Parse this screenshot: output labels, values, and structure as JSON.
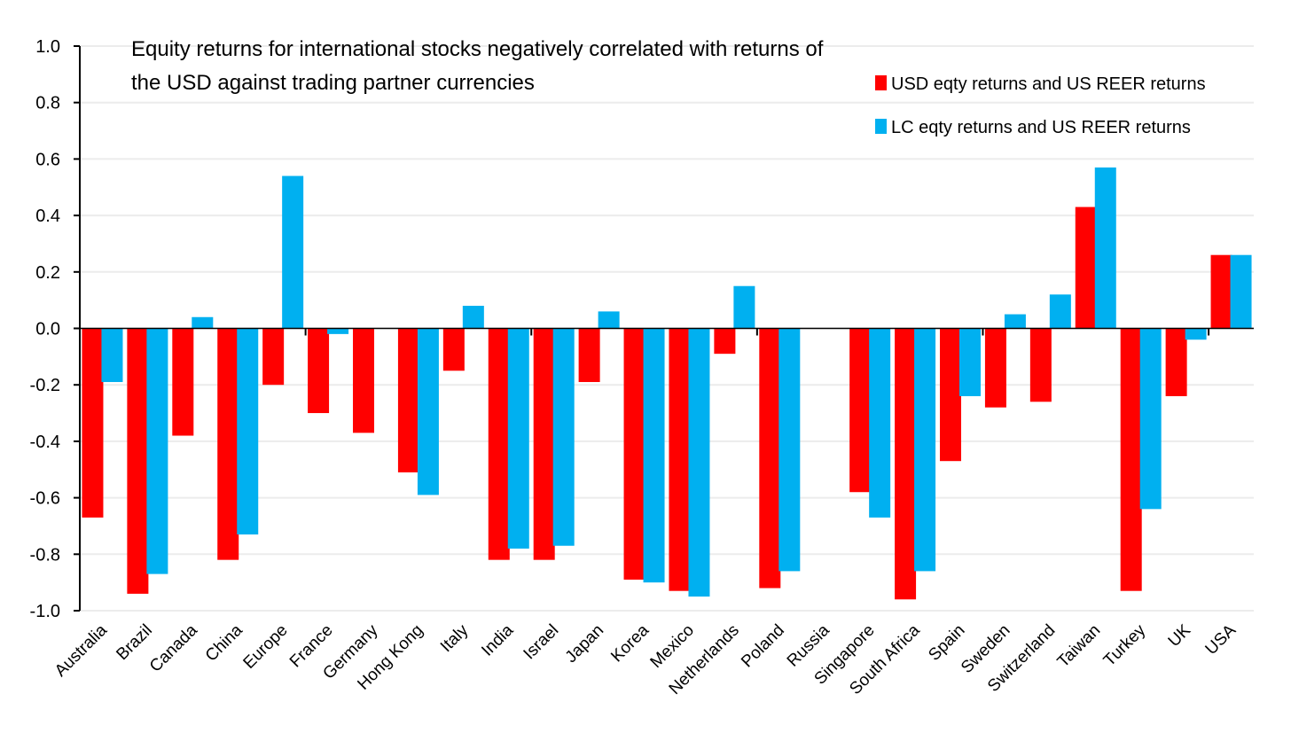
{
  "chart_data": {
    "type": "bar",
    "title": [
      "Equity returns for international stocks negatively correlated with returns of",
      "the USD against trading partner currencies"
    ],
    "xlabel": "",
    "ylabel": "",
    "ylim": [
      -1.0,
      1.0
    ],
    "yticks": [
      "1.0",
      "0.8",
      "0.6",
      "0.4",
      "0.2",
      "0.0",
      "-0.2",
      "-0.4",
      "-0.6",
      "-0.8",
      "-1.0"
    ],
    "ytick_values": [
      1.0,
      0.8,
      0.6,
      0.4,
      0.2,
      0.0,
      -0.2,
      -0.4,
      -0.6,
      -0.8,
      -1.0
    ],
    "grid": true,
    "legend_position": "top-right",
    "categories": [
      "Australia",
      "Brazil",
      "Canada",
      "China",
      "Europe",
      "France",
      "Germany",
      "Hong Kong",
      "Italy",
      "India",
      "Israel",
      "Japan",
      "Korea",
      "Mexico",
      "Netherlands",
      "Poland",
      "Russia",
      "Singapore",
      "South Africa",
      "Spain",
      "Sweden",
      "Switzerland",
      "Taiwan",
      "Turkey",
      "UK",
      "USA"
    ],
    "series": [
      {
        "name": "USD eqty returns and US REER returns",
        "color": "#ff0000",
        "values": [
          -0.67,
          -0.94,
          -0.38,
          -0.82,
          -0.2,
          -0.3,
          -0.37,
          -0.51,
          -0.15,
          -0.82,
          -0.82,
          -0.19,
          -0.89,
          -0.93,
          -0.09,
          -0.92,
          null,
          -0.58,
          -0.96,
          -0.47,
          -0.28,
          -0.26,
          0.43,
          -0.93,
          -0.24,
          0.26
        ]
      },
      {
        "name": "LC eqty returns and US REER returns",
        "color": "#00b0f0",
        "values": [
          -0.19,
          -0.87,
          0.04,
          -0.73,
          0.54,
          -0.02,
          0.0,
          -0.59,
          0.08,
          -0.78,
          -0.77,
          0.06,
          -0.9,
          -0.95,
          0.15,
          -0.86,
          null,
          -0.67,
          -0.86,
          -0.24,
          0.05,
          0.12,
          0.57,
          -0.64,
          -0.04,
          0.26
        ]
      }
    ]
  }
}
